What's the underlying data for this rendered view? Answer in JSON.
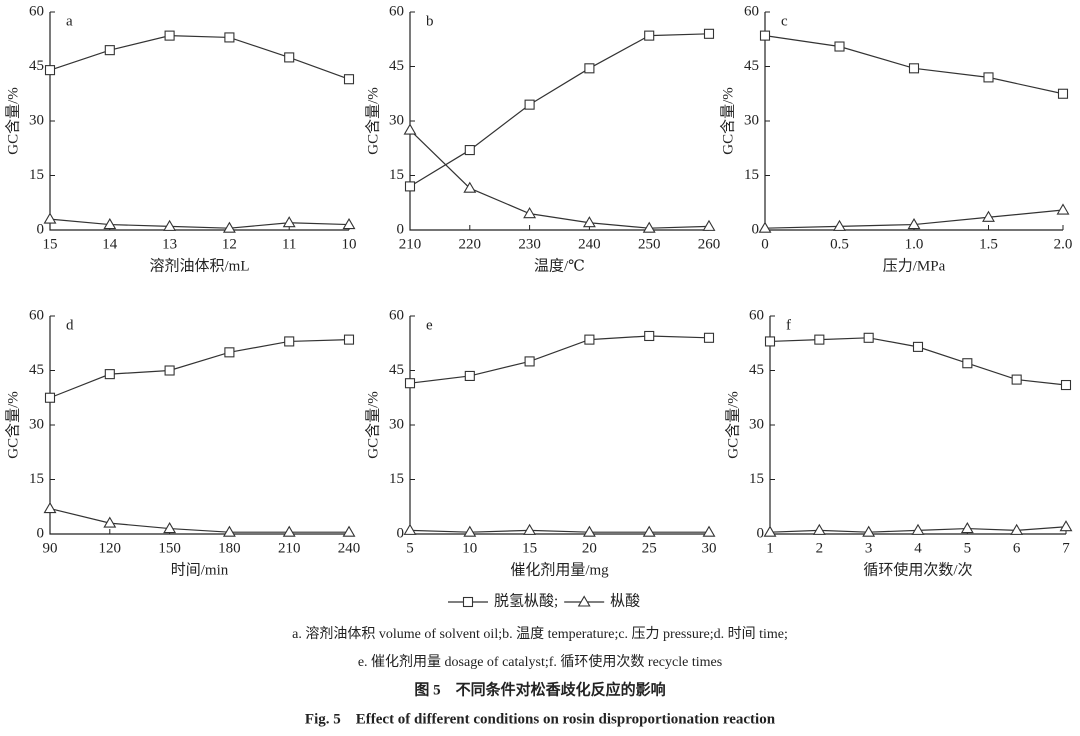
{
  "chart_data": [
    {
      "type": "line",
      "annotation": "a",
      "xlabel": "溶剂油体积/mL",
      "ylabel": "GC含量/%",
      "x": [
        15,
        14,
        13,
        12,
        11,
        10
      ],
      "xlim": [
        15,
        10
      ],
      "xticks": [
        15,
        14,
        13,
        12,
        11,
        10
      ],
      "ylim": [
        0,
        60
      ],
      "yticks": [
        0,
        15,
        30,
        45,
        60
      ],
      "series": [
        {
          "marker": "square",
          "color": "#333333",
          "values": [
            44,
            49.5,
            53.5,
            53,
            47.5,
            41.5
          ]
        },
        {
          "marker": "triangle",
          "color": "#333333",
          "values": [
            3,
            1.5,
            1,
            0.5,
            2,
            1.5
          ]
        }
      ]
    },
    {
      "type": "line",
      "annotation": "b",
      "xlabel": "温度/℃",
      "ylabel": "GC含量/%",
      "x": [
        210,
        220,
        230,
        240,
        250,
        260
      ],
      "xlim": [
        210,
        260
      ],
      "xticks": [
        210,
        220,
        230,
        240,
        250,
        260
      ],
      "ylim": [
        0,
        60
      ],
      "yticks": [
        0,
        15,
        30,
        45,
        60
      ],
      "series": [
        {
          "marker": "square",
          "color": "#333333",
          "values": [
            12,
            22,
            34.5,
            44.5,
            53.5,
            54
          ]
        },
        {
          "marker": "triangle",
          "color": "#333333",
          "values": [
            27.5,
            11.5,
            4.5,
            2,
            0.5,
            1
          ]
        }
      ]
    },
    {
      "type": "line",
      "annotation": "c",
      "xlabel": "压力/MPa",
      "ylabel": "GC含量/%",
      "x": [
        0,
        0.5,
        1,
        1.5,
        2
      ],
      "xlim": [
        0,
        2
      ],
      "xticks": [
        0,
        0.5,
        {
          "value": 1,
          "label": "1.0"
        },
        1.5,
        {
          "value": 2,
          "label": "2.0"
        }
      ],
      "ylim": [
        0,
        60
      ],
      "yticks": [
        0,
        15,
        30,
        45,
        60
      ],
      "series": [
        {
          "marker": "square",
          "color": "#333333",
          "values": [
            53.5,
            50.5,
            44.5,
            42,
            37.5
          ]
        },
        {
          "marker": "triangle",
          "color": "#333333",
          "values": [
            0.5,
            1,
            1.5,
            3.5,
            5.5
          ]
        }
      ]
    },
    {
      "type": "line",
      "annotation": "d",
      "xlabel": "时间/min",
      "ylabel": "GC含量/%",
      "x": [
        90,
        120,
        150,
        180,
        210,
        240
      ],
      "xlim": [
        90,
        240
      ],
      "xticks": [
        90,
        120,
        150,
        180,
        210,
        240
      ],
      "ylim": [
        0,
        60
      ],
      "yticks": [
        0,
        15,
        30,
        45,
        60
      ],
      "series": [
        {
          "marker": "square",
          "color": "#333333",
          "values": [
            37.5,
            44,
            45,
            50,
            53,
            53.5
          ]
        },
        {
          "marker": "triangle",
          "color": "#333333",
          "values": [
            7,
            3,
            1.5,
            0.5,
            0.5,
            0.5
          ]
        }
      ]
    },
    {
      "type": "line",
      "annotation": "e",
      "xlabel": "催化剂用量/mg",
      "ylabel": "GC含量/%",
      "x": [
        5,
        10,
        15,
        20,
        25,
        30
      ],
      "xlim": [
        5,
        30
      ],
      "xticks": [
        5,
        10,
        15,
        20,
        25,
        30
      ],
      "ylim": [
        0,
        60
      ],
      "yticks": [
        0,
        15,
        30,
        45,
        60
      ],
      "series": [
        {
          "marker": "square",
          "color": "#333333",
          "values": [
            41.5,
            43.5,
            47.5,
            53.5,
            54.5,
            54
          ]
        },
        {
          "marker": "triangle",
          "color": "#333333",
          "values": [
            1,
            0.5,
            1,
            0.5,
            0.5,
            0.5
          ]
        }
      ]
    },
    {
      "type": "line",
      "annotation": "f",
      "xlabel": "循环使用次数/次",
      "ylabel": "GC含量/%",
      "x": [
        1,
        2,
        3,
        4,
        5,
        6,
        7
      ],
      "xlim": [
        1,
        7
      ],
      "xticks": [
        1,
        2,
        3,
        4,
        5,
        6,
        7
      ],
      "ylim": [
        0,
        60
      ],
      "yticks": [
        0,
        15,
        30,
        45,
        60
      ],
      "series": [
        {
          "marker": "square",
          "color": "#333333",
          "values": [
            53,
            53.5,
            54,
            51.5,
            47,
            42.5,
            41
          ]
        },
        {
          "marker": "triangle",
          "color": "#333333",
          "values": [
            0.5,
            1,
            0.5,
            1,
            1.5,
            1,
            2
          ]
        }
      ]
    }
  ],
  "legend": [
    "脱氢枞酸;",
    "枞酸"
  ],
  "caption": {
    "lines": [
      "a. 溶剂油体积 volume of solvent oil;b. 温度 temperature;c. 压力 pressure;d. 时间 time;",
      "e. 催化剂用量 dosage of catalyst;f. 循环使用次数 recycle times"
    ],
    "title_cn": "图 5　不同条件对松香歧化反应的影响",
    "title_en": "Fig. 5　Effect of different conditions on rosin disproportionation reaction"
  }
}
